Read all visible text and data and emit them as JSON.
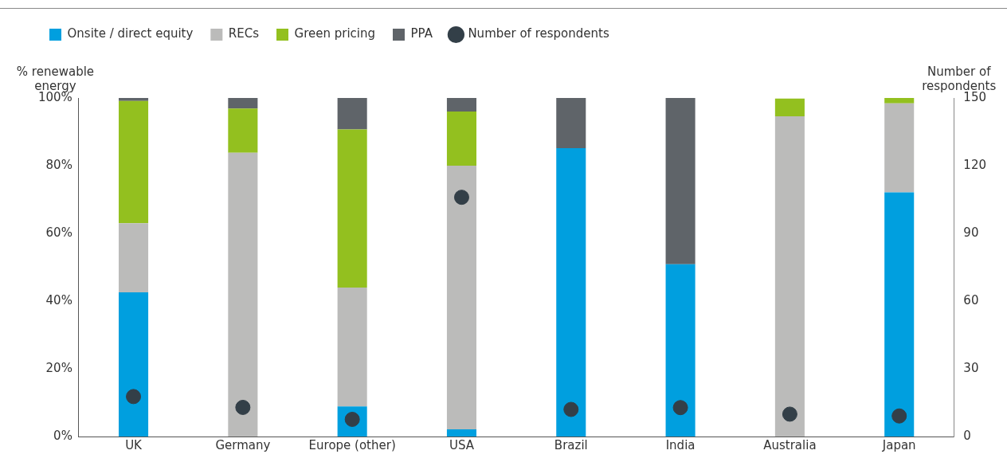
{
  "chart_data": {
    "type": "bar",
    "stacked": true,
    "ylabel": "% renewable energy",
    "y2label": "Number of respondents",
    "categories": [
      "UK",
      "Germany",
      "Europe (other)",
      "USA",
      "Brazil",
      "India",
      "Australia",
      "Japan"
    ],
    "series": [
      {
        "name": "Onsite / direct equity",
        "color": "#009fdf",
        "values": [
          42.6,
          null,
          8.9,
          2.1,
          85.2,
          50.9,
          null,
          72.1
        ]
      },
      {
        "name": "RECs",
        "color": "#bbbbba",
        "values": [
          20.4,
          83.8,
          35.1,
          77.9,
          null,
          null,
          94.6,
          26.3
        ]
      },
      {
        "name": "Green pricing",
        "color": "#93c01f",
        "values": [
          36.1,
          13.1,
          46.7,
          16.0,
          null,
          null,
          5.2,
          1.6
        ]
      },
      {
        "name": "PPA",
        "color": "#5f6469",
        "values": [
          0.9,
          3.1,
          9.3,
          4.0,
          14.8,
          49.1,
          null,
          null
        ]
      },
      {
        "name": "Number of respondents",
        "type": "scatter",
        "axis": "y2",
        "color": "#333f48",
        "x": [
          "UK",
          "Germany",
          "Europe (other)",
          "USA",
          "Brazil",
          "India",
          "Australia",
          "Japan"
        ],
        "values": [
          17.7,
          12.9,
          7.6,
          106,
          12,
          12.8,
          9.9,
          9.1
        ]
      }
    ],
    "ylim": [
      0,
      100
    ],
    "yticks": [
      {
        "value": 0,
        "label": "0%"
      },
      {
        "value": 20,
        "label": "20%"
      },
      {
        "value": 40,
        "label": "40%"
      },
      {
        "value": 60,
        "label": "60%"
      },
      {
        "value": 80,
        "label": "80%"
      },
      {
        "value": 100,
        "label": "100%"
      }
    ],
    "y2lim": [
      0,
      150
    ],
    "y2ticks": [
      0,
      30,
      60,
      90,
      120,
      150
    ],
    "grid": false,
    "legend": "top left",
    "marker": "circle"
  }
}
